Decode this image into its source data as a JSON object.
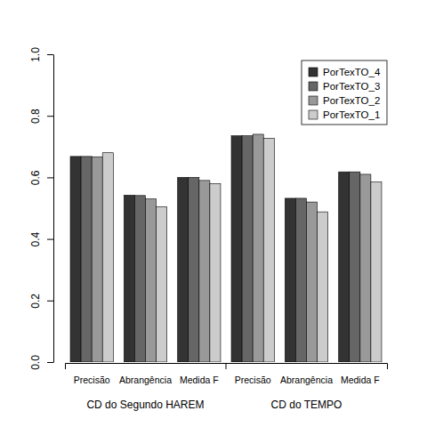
{
  "chart_data": {
    "type": "bar",
    "categories": [
      "Precisão",
      "Abrangência",
      "Medida F",
      "Precisão",
      "Abrangência",
      "Medida F"
    ],
    "groups": [
      "CD do Segundo HAREM",
      "CD do TEMPO"
    ],
    "series": [
      {
        "name": "PorTexTO_4",
        "color": "#333333",
        "values": [
          0.668,
          0.542,
          0.6,
          0.735,
          0.532,
          0.618
        ]
      },
      {
        "name": "PorTexTO_3",
        "color": "#666666",
        "values": [
          0.668,
          0.541,
          0.6,
          0.735,
          0.532,
          0.618
        ]
      },
      {
        "name": "PorTexTO_2",
        "color": "#999999",
        "values": [
          0.667,
          0.53,
          0.59,
          0.74,
          0.52,
          0.61
        ]
      },
      {
        "name": "PorTexTO_1",
        "color": "#cccccc",
        "values": [
          0.68,
          0.505,
          0.58,
          0.727,
          0.488,
          0.585
        ]
      }
    ],
    "ylim": [
      0,
      1
    ],
    "yticks": [
      {
        "value": 0,
        "label": "0.0"
      },
      0.2,
      0.4,
      0.6,
      0.8,
      {
        "value": 1,
        "label": "1.0"
      }
    ],
    "legend": "top-right",
    "grid": false
  }
}
